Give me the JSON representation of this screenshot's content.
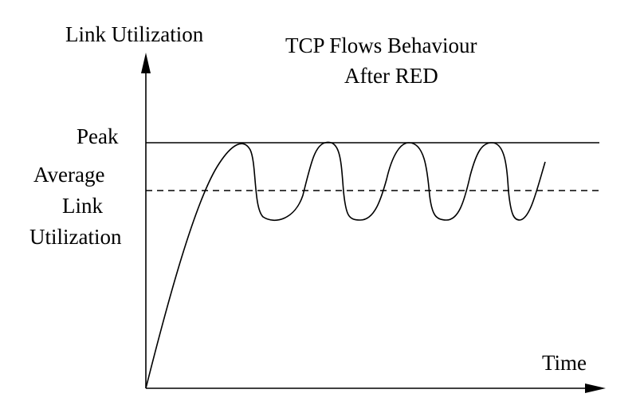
{
  "title": {
    "line1": "TCP Flows Behaviour",
    "line2": "After RED"
  },
  "axes": {
    "y_label": "Link Utilization",
    "x_label": "Time"
  },
  "reference_lines": {
    "peak_label": "Peak",
    "average_label_lines": [
      "Average",
      "Link",
      "Utilization"
    ]
  },
  "colors": {
    "ink": "#000000",
    "background": "#ffffff"
  }
}
